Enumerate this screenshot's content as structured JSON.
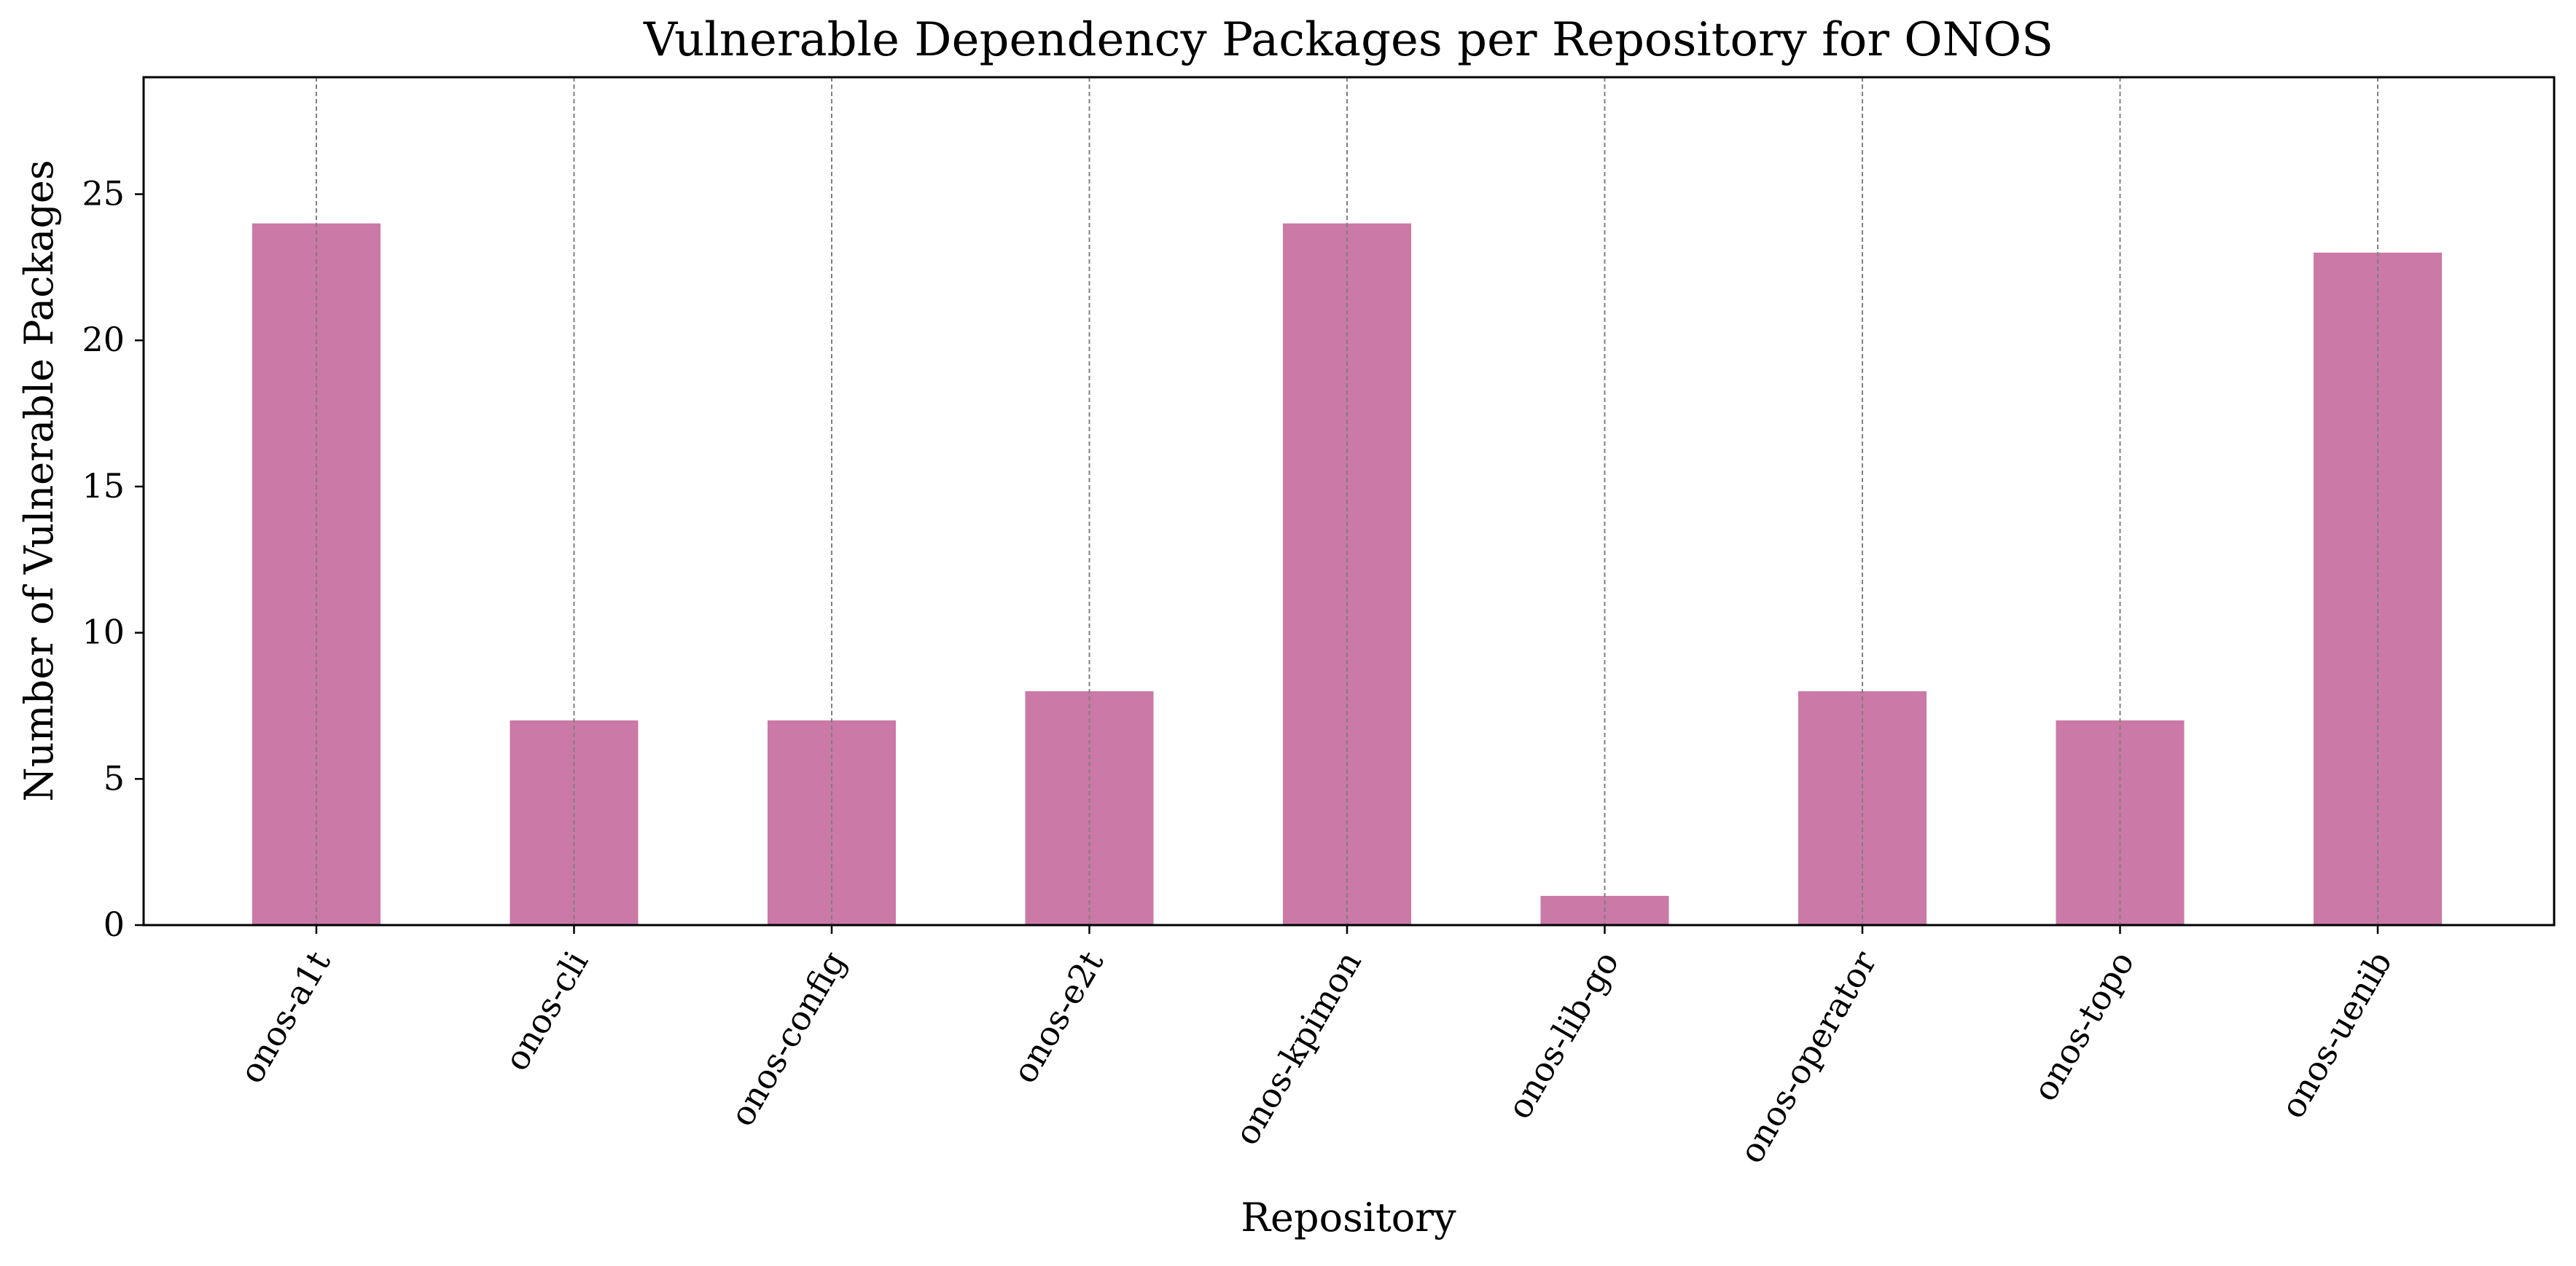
{
  "chart_data": {
    "type": "bar",
    "title": "Vulnerable Dependency Packages per Repository for ONOS",
    "xlabel": "Repository",
    "ylabel": "Number of Vulnerable Packages",
    "categories": [
      "onos-a1t",
      "onos-cli",
      "onos-config",
      "onos-e2t",
      "onos-kpimon",
      "onos-lib-go",
      "onos-operator",
      "onos-topo",
      "onos-uenib"
    ],
    "values": [
      24,
      7,
      7,
      8,
      24,
      1,
      8,
      7,
      23
    ],
    "ylim": [
      0,
      29
    ],
    "yticks": [
      "0",
      "5",
      "10",
      "15",
      "20",
      "25"
    ],
    "grid": "vertical dashed at category positions",
    "bar_color": "#CB79A6",
    "grid_color": "#808080"
  }
}
